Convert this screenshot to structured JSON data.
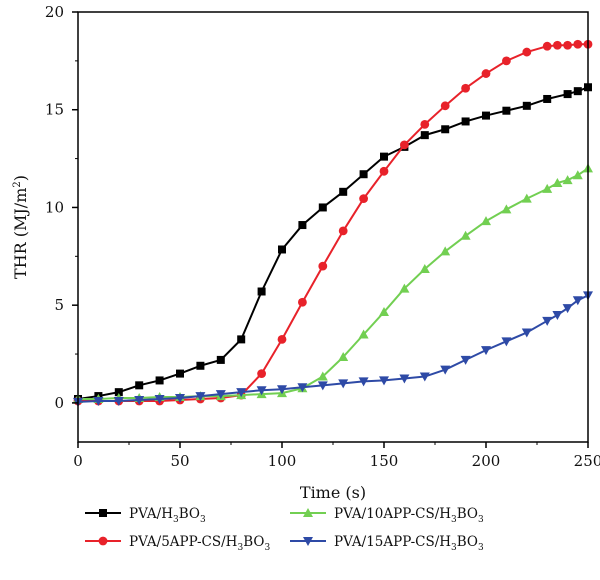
{
  "chart_data": {
    "type": "line",
    "xlabel": "Time (s)",
    "ylabel_parts": [
      "THR (MJ/m",
      "2",
      ")"
    ],
    "xlim": [
      0,
      250
    ],
    "ylim": [
      -2,
      20
    ],
    "xticks": [
      "0",
      "50",
      "100",
      "150",
      "200",
      "250"
    ],
    "yticks": [
      "0",
      "5",
      "10",
      "15",
      "20"
    ],
    "grid": false,
    "legend_position": "bottom",
    "series": [
      {
        "name_parts": [
          "PVA/H",
          "3",
          "BO",
          "3"
        ],
        "color": "#000000",
        "marker": "square",
        "x": [
          0,
          10,
          20,
          30,
          40,
          50,
          60,
          70,
          80,
          90,
          100,
          110,
          120,
          130,
          140,
          150,
          160,
          170,
          180,
          190,
          200,
          210,
          220,
          230,
          240,
          245,
          250
        ],
        "y": [
          0.2,
          0.35,
          0.55,
          0.9,
          1.15,
          1.5,
          1.9,
          2.2,
          3.25,
          5.7,
          7.85,
          9.1,
          10.0,
          10.8,
          11.7,
          12.6,
          13.1,
          13.7,
          14.0,
          14.4,
          14.7,
          14.95,
          15.2,
          15.55,
          15.8,
          15.95,
          16.15
        ]
      },
      {
        "name_parts": [
          "PVA/5APP-CS/H",
          "3",
          "BO",
          "3"
        ],
        "color": "#e8222a",
        "marker": "circle",
        "x": [
          0,
          10,
          20,
          30,
          40,
          50,
          60,
          70,
          80,
          90,
          100,
          110,
          120,
          130,
          140,
          150,
          160,
          170,
          180,
          190,
          200,
          210,
          220,
          230,
          235,
          240,
          245,
          250
        ],
        "y": [
          0.1,
          0.1,
          0.1,
          0.1,
          0.1,
          0.15,
          0.2,
          0.25,
          0.4,
          1.5,
          3.25,
          5.15,
          7.0,
          8.8,
          10.45,
          11.85,
          13.2,
          14.25,
          15.2,
          16.1,
          16.85,
          17.5,
          17.95,
          18.25,
          18.3,
          18.3,
          18.35,
          18.35
        ]
      },
      {
        "name_parts": [
          "PVA/10APP-CS/H",
          "3",
          "BO",
          "3"
        ],
        "color": "#72cf52",
        "marker": "triangle-up",
        "x": [
          0,
          10,
          20,
          30,
          40,
          50,
          60,
          70,
          80,
          90,
          100,
          110,
          120,
          130,
          140,
          150,
          160,
          170,
          180,
          190,
          200,
          210,
          220,
          230,
          235,
          240,
          245,
          250
        ],
        "y": [
          0.2,
          0.2,
          0.25,
          0.25,
          0.3,
          0.3,
          0.35,
          0.35,
          0.4,
          0.45,
          0.5,
          0.75,
          1.35,
          2.35,
          3.5,
          4.65,
          5.85,
          6.85,
          7.75,
          8.55,
          9.3,
          9.9,
          10.45,
          10.95,
          11.25,
          11.4,
          11.65,
          12.0
        ]
      },
      {
        "name_parts": [
          "PVA/15APP-CS/H",
          "3",
          "BO",
          "3"
        ],
        "color": "#2e4aa6",
        "marker": "triangle-down",
        "x": [
          0,
          10,
          20,
          30,
          40,
          50,
          60,
          70,
          80,
          90,
          100,
          110,
          120,
          130,
          140,
          150,
          160,
          170,
          180,
          190,
          200,
          210,
          220,
          230,
          235,
          240,
          245,
          250
        ],
        "y": [
          0.05,
          0.1,
          0.1,
          0.15,
          0.2,
          0.25,
          0.35,
          0.45,
          0.55,
          0.65,
          0.7,
          0.8,
          0.9,
          1.0,
          1.1,
          1.15,
          1.25,
          1.35,
          1.7,
          2.2,
          2.7,
          3.15,
          3.6,
          4.2,
          4.5,
          4.85,
          5.25,
          5.5
        ]
      }
    ]
  }
}
